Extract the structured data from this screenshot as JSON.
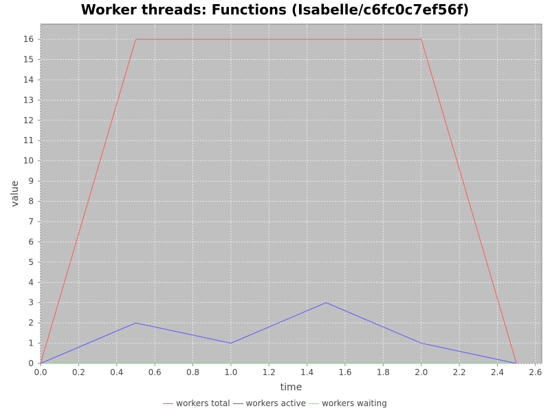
{
  "chart_data": {
    "type": "line",
    "title": "Worker threads: Functions (Isabelle/c6fc0c7ef56f)",
    "xlabel": "time",
    "ylabel": "value",
    "xlim": [
      0,
      2.633
    ],
    "ylim": [
      0,
      16.75
    ],
    "xticks": [
      0,
      0.2,
      0.4,
      0.6,
      0.8,
      1.0,
      1.2,
      1.4,
      1.6,
      1.8,
      2.0,
      2.2,
      2.4,
      2.6
    ],
    "xtick_labels": [
      "0.0",
      "0.2",
      "0.4",
      "0.6",
      "0.8",
      "1.0",
      "1.2",
      "1.4",
      "1.6",
      "1.8",
      "2.0",
      "2.2",
      "2.4",
      "2.6"
    ],
    "yticks": [
      0,
      1,
      2,
      3,
      4,
      5,
      6,
      7,
      8,
      9,
      10,
      11,
      12,
      13,
      14,
      15,
      16
    ],
    "grid": true,
    "legend": "bottom",
    "background": "#c0c0c0",
    "series": [
      {
        "name": "workers total",
        "color": "#ff5555",
        "x": [
          0,
          0.5,
          2.0,
          2.5
        ],
        "y": [
          0,
          16,
          16,
          0
        ]
      },
      {
        "name": "workers active",
        "color": "#5555ff",
        "x": [
          0,
          0.5,
          1.0,
          1.5,
          2.0,
          2.5
        ],
        "y": [
          0,
          2,
          1,
          3,
          1,
          0
        ]
      },
      {
        "name": "workers waiting",
        "color": "#55ff55",
        "x": [
          0,
          2.5
        ],
        "y": [
          0,
          0
        ]
      }
    ]
  }
}
